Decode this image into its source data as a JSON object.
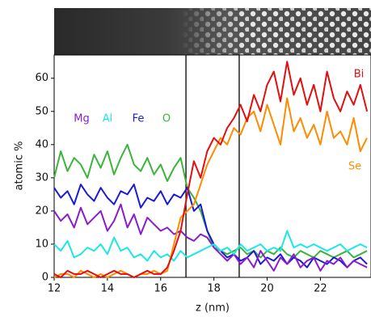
{
  "chart_data": {
    "type": "line",
    "xlabel": "z (nm)",
    "ylabel": "atomic %",
    "xlim": [
      12,
      23.9
    ],
    "ylim": [
      0,
      67
    ],
    "xticks": [
      12,
      14,
      16,
      18,
      20,
      22
    ],
    "yticks": [
      0,
      10,
      20,
      30,
      40,
      50,
      60
    ],
    "vlines": [
      16.95,
      18.95
    ],
    "x": [
      12,
      12.25,
      12.5,
      12.75,
      13,
      13.25,
      13.5,
      13.75,
      14,
      14.25,
      14.5,
      14.75,
      15,
      15.25,
      15.5,
      15.75,
      16,
      16.25,
      16.5,
      16.75,
      17,
      17.25,
      17.5,
      17.75,
      18,
      18.25,
      18.5,
      18.75,
      19,
      19.25,
      19.5,
      19.75,
      20,
      20.25,
      20.5,
      20.75,
      21,
      21.25,
      21.5,
      21.75,
      22,
      22.25,
      22.5,
      22.75,
      23,
      23.25,
      23.5,
      23.75
    ],
    "series": [
      {
        "name": "O",
        "color": "#3cb43c",
        "values": [
          30,
          38,
          32,
          36,
          34,
          30,
          37,
          33,
          38,
          31,
          36,
          40,
          34,
          32,
          36,
          31,
          34,
          29,
          33,
          36,
          27,
          24,
          20,
          14,
          9,
          8,
          7,
          8,
          9,
          7,
          8,
          6,
          8,
          7,
          9,
          7,
          6,
          8,
          7,
          6,
          8,
          7,
          6,
          7,
          8,
          6,
          7,
          8
        ]
      },
      {
        "name": "Fe",
        "color": "#1a1ad6",
        "values": [
          27,
          24,
          26,
          22,
          28,
          25,
          23,
          27,
          24,
          22,
          26,
          25,
          28,
          21,
          24,
          23,
          26,
          22,
          25,
          24,
          27,
          20,
          22,
          14,
          10,
          8,
          6,
          7,
          5,
          6,
          8,
          4,
          6,
          5,
          7,
          4,
          6,
          5,
          3,
          6,
          5,
          4,
          6,
          5,
          3,
          5,
          6,
          4
        ]
      },
      {
        "name": "Mg",
        "color": "#8a1ccc",
        "values": [
          20,
          17,
          19,
          15,
          21,
          16,
          18,
          20,
          14,
          17,
          22,
          15,
          19,
          13,
          18,
          16,
          14,
          15,
          13,
          14,
          12,
          11,
          13,
          12,
          9,
          7,
          5,
          7,
          4,
          6,
          3,
          8,
          5,
          2,
          6,
          4,
          7,
          3,
          5,
          6,
          2,
          5,
          4,
          6,
          3,
          5,
          4,
          3
        ]
      },
      {
        "name": "Al",
        "color": "#1ee6e6",
        "values": [
          10,
          8,
          11,
          6,
          7,
          9,
          8,
          10,
          7,
          12,
          8,
          9,
          6,
          7,
          5,
          8,
          6,
          7,
          5,
          8,
          6,
          7,
          8,
          9,
          10,
          8,
          9,
          7,
          10,
          8,
          9,
          10,
          8,
          9,
          8,
          14,
          9,
          10,
          9,
          10,
          9,
          8,
          9,
          10,
          8,
          9,
          10,
          9
        ]
      },
      {
        "name": "Se",
        "color": "#ff8c00",
        "values": [
          0,
          1,
          1,
          0,
          2,
          1,
          0,
          1,
          0,
          1,
          2,
          1,
          0,
          1,
          1,
          2,
          1,
          2,
          10,
          18,
          20,
          22,
          28,
          34,
          38,
          42,
          40,
          45,
          43,
          48,
          50,
          44,
          52,
          46,
          40,
          54,
          44,
          48,
          42,
          46,
          40,
          50,
          42,
          44,
          40,
          48,
          38,
          42
        ]
      },
      {
        "name": "Bi",
        "color": "#e01010",
        "values": [
          1,
          0,
          2,
          1,
          1,
          2,
          1,
          0,
          1,
          2,
          1,
          1,
          0,
          1,
          2,
          1,
          1,
          3,
          8,
          14,
          25,
          35,
          30,
          38,
          42,
          40,
          45,
          48,
          52,
          47,
          55,
          50,
          58,
          62,
          53,
          65,
          55,
          60,
          52,
          58,
          50,
          62,
          54,
          50,
          56,
          52,
          58,
          50
        ]
      }
    ]
  }
}
